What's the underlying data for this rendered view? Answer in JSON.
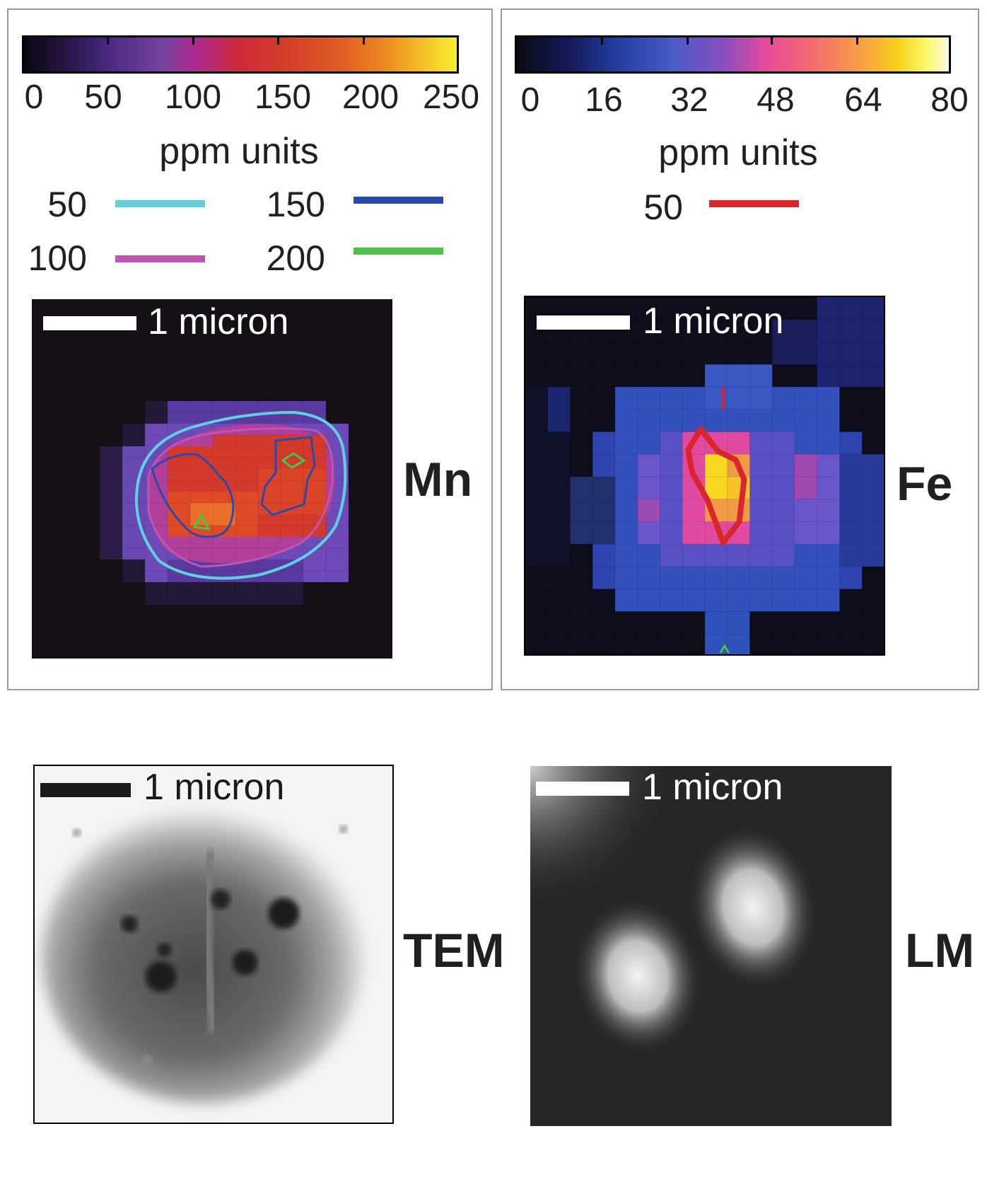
{
  "mn_panel": {
    "colorbar_ticks": [
      "0",
      "50",
      "100",
      "150",
      "200",
      "250"
    ],
    "unit_label": "ppm units",
    "contour_legend": [
      {
        "value": "50",
        "color": "#5fd0e0"
      },
      {
        "value": "100",
        "color": "#c054b0"
      },
      {
        "value": "150",
        "color": "#2a4aa8"
      },
      {
        "value": "200",
        "color": "#4cc24a"
      }
    ],
    "scale_label": "1 micron",
    "element_label": "Mn"
  },
  "fe_panel": {
    "colorbar_ticks": [
      "0",
      "16",
      "32",
      "48",
      "64",
      "80"
    ],
    "unit_label": "ppm units",
    "contour_legend": [
      {
        "value": "50",
        "color": "#d8262c"
      }
    ],
    "scale_label": "1 micron",
    "element_label": "Fe"
  },
  "tem_panel": {
    "scale_label": "1 micron",
    "label": "TEM"
  },
  "lm_panel": {
    "scale_label": "1 micron",
    "label": "LM"
  }
}
